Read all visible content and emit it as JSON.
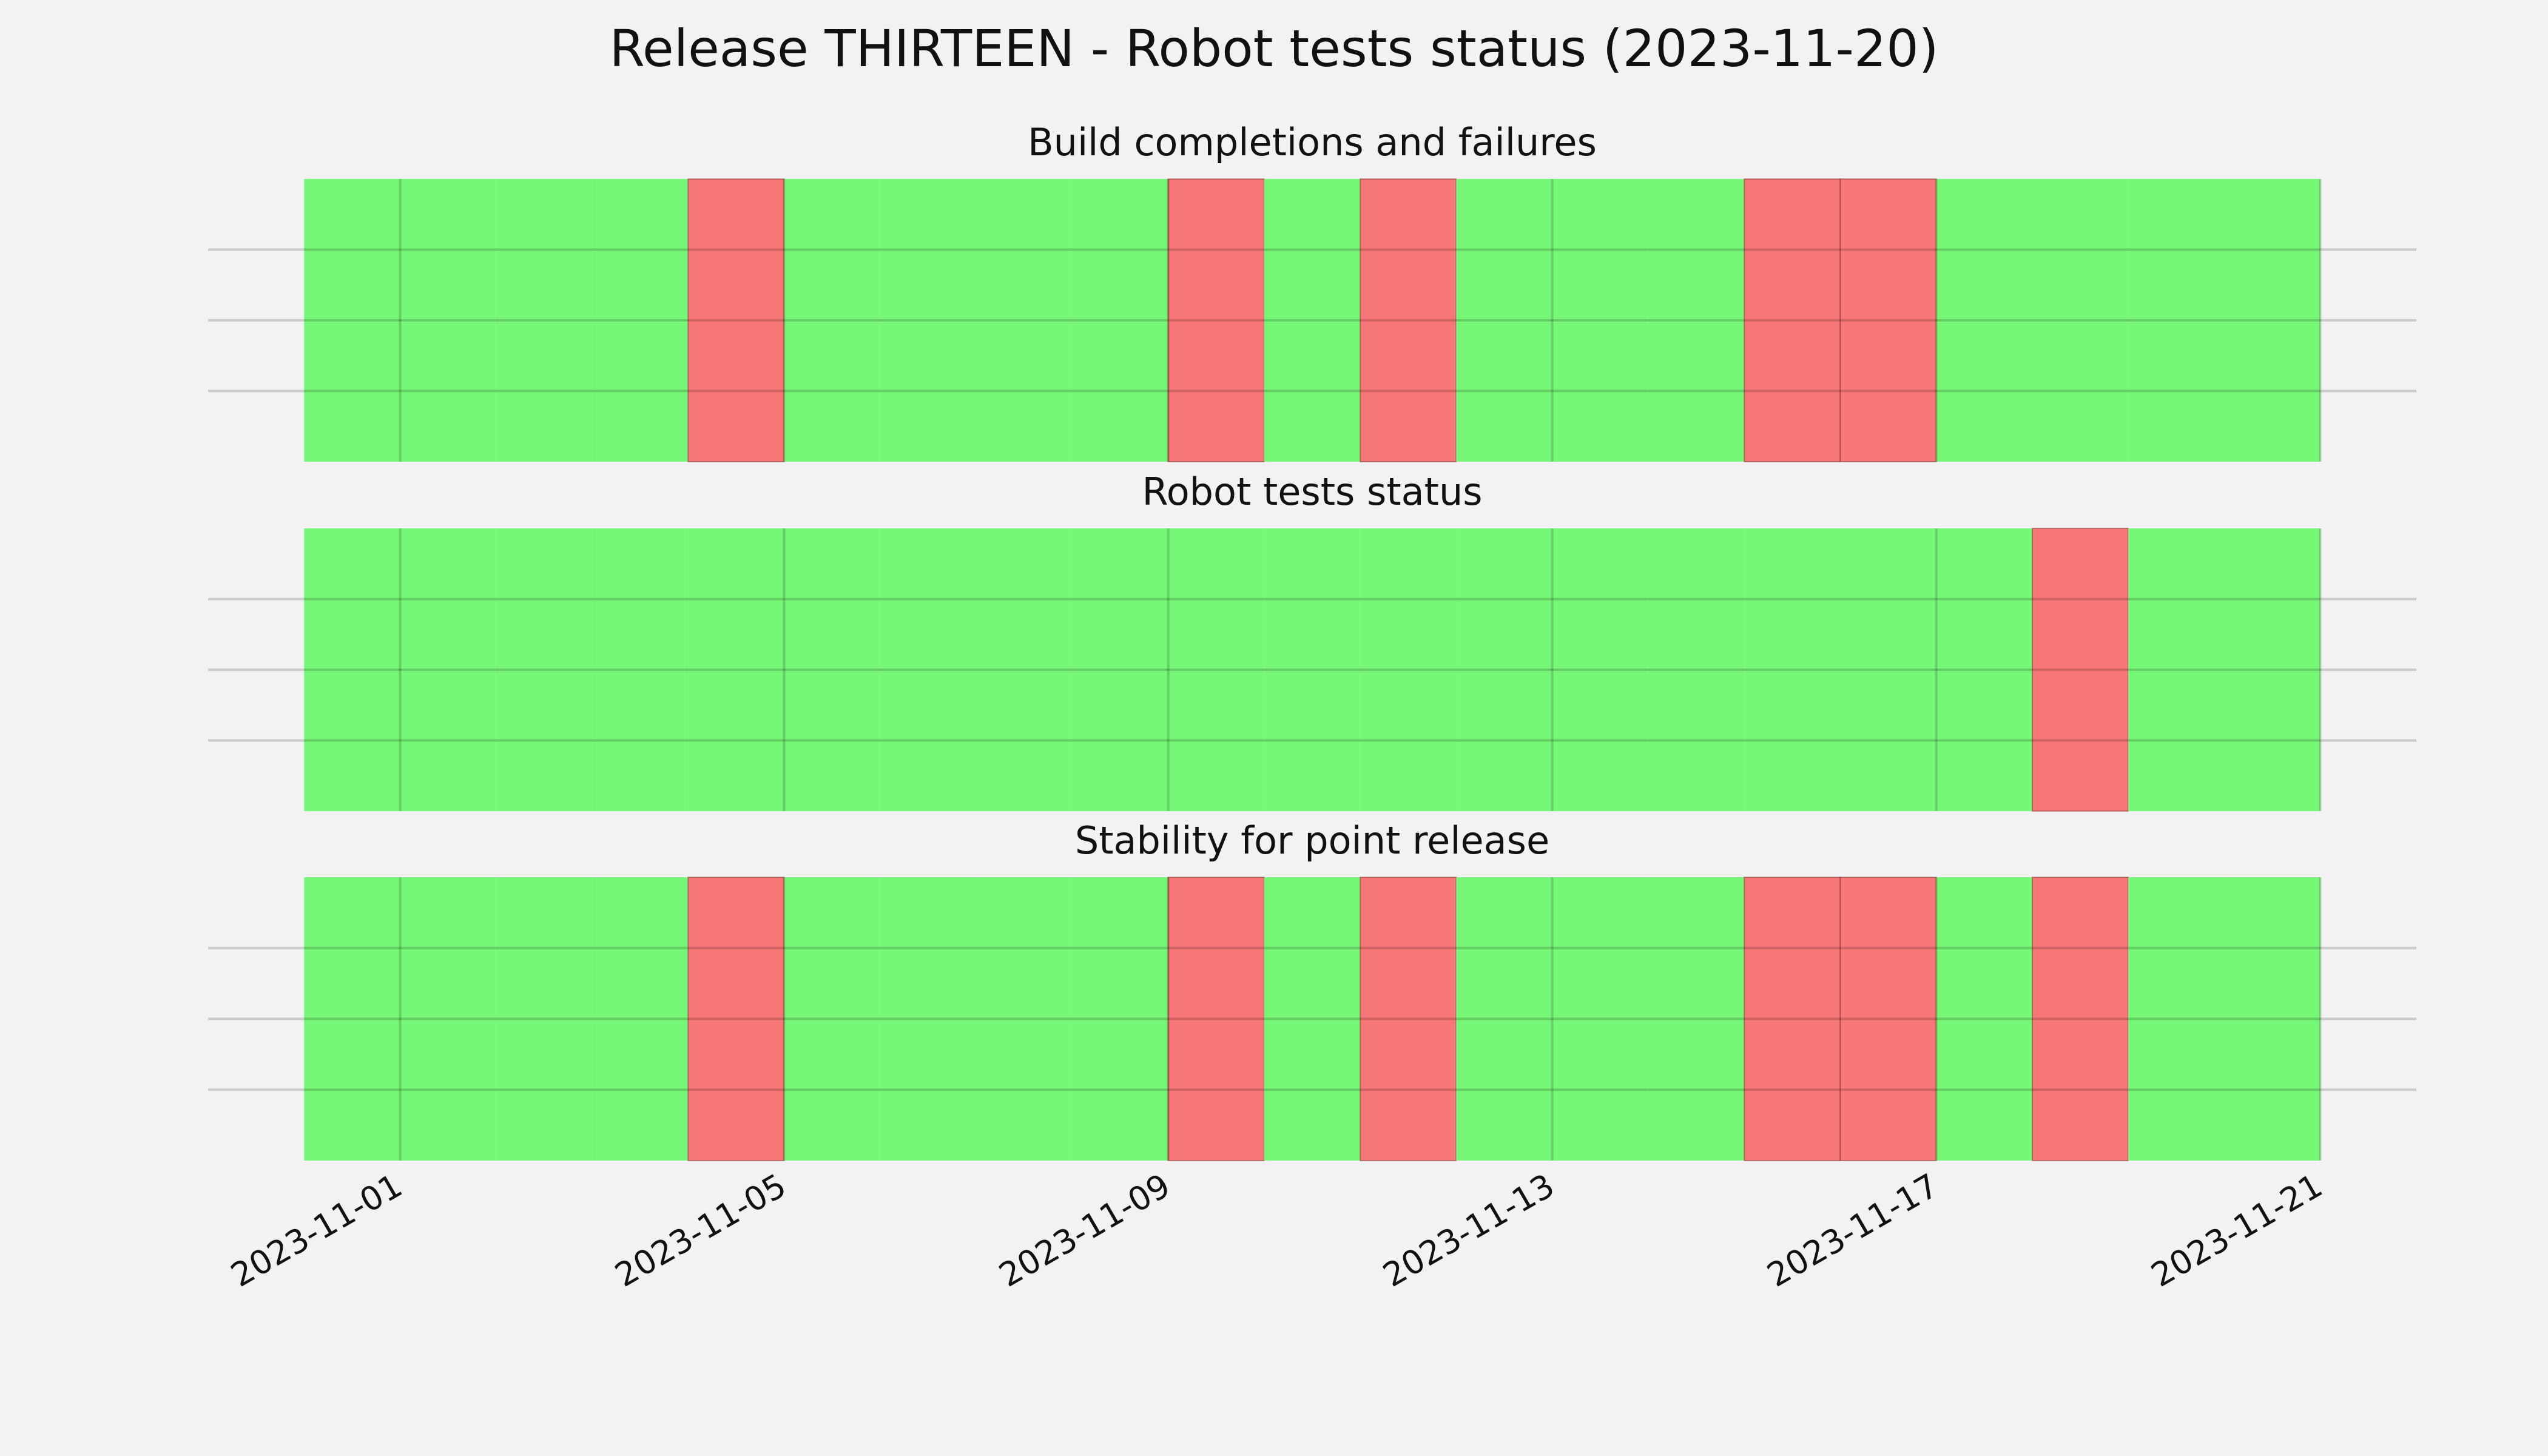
{
  "title": "Release THIRTEEN - Robot tests status (2023-11-20)",
  "chart_data": [
    {
      "type": "timeline",
      "title": "Build completions and failures",
      "x": [
        "2023-10-31",
        "2023-11-01",
        "2023-11-02",
        "2023-11-03",
        "2023-11-04",
        "2023-11-05",
        "2023-11-06",
        "2023-11-07",
        "2023-11-08",
        "2023-11-09",
        "2023-11-10",
        "2023-11-11",
        "2023-11-12",
        "2023-11-13",
        "2023-11-14",
        "2023-11-15",
        "2023-11-16",
        "2023-11-17",
        "2023-11-18",
        "2023-11-19",
        "2023-11-20"
      ],
      "values": [
        1,
        1,
        1,
        1,
        0,
        1,
        1,
        1,
        1,
        0,
        1,
        0,
        1,
        1,
        1,
        0,
        0,
        1,
        1,
        1,
        1
      ],
      "colors": [
        "#f77676",
        "#77f777"
      ],
      "xlim": [
        "2023-10-30",
        "2023-11-22"
      ],
      "xticks": [
        "2023-11-01",
        "2023-11-05",
        "2023-11-09",
        "2023-11-13",
        "2023-11-17",
        "2023-11-21"
      ],
      "ylim": [
        0,
        1
      ],
      "yticks": [
        0.25,
        0.5,
        0.75
      ],
      "grid": true
    },
    {
      "type": "timeline",
      "title": "Robot tests status",
      "x": [
        "2023-10-31",
        "2023-11-01",
        "2023-11-02",
        "2023-11-03",
        "2023-11-04",
        "2023-11-05",
        "2023-11-06",
        "2023-11-07",
        "2023-11-08",
        "2023-11-09",
        "2023-11-10",
        "2023-11-11",
        "2023-11-12",
        "2023-11-13",
        "2023-11-14",
        "2023-11-15",
        "2023-11-16",
        "2023-11-17",
        "2023-11-18",
        "2023-11-19",
        "2023-11-20"
      ],
      "values": [
        1,
        1,
        1,
        1,
        1,
        1,
        1,
        1,
        1,
        1,
        1,
        1,
        1,
        1,
        1,
        1,
        1,
        1,
        0,
        1,
        1
      ],
      "colors": [
        "#f77676",
        "#77f777"
      ],
      "xlim": [
        "2023-10-30",
        "2023-11-22"
      ],
      "xticks": [
        "2023-11-01",
        "2023-11-05",
        "2023-11-09",
        "2023-11-13",
        "2023-11-17",
        "2023-11-21"
      ],
      "ylim": [
        0,
        1
      ],
      "yticks": [
        0.25,
        0.5,
        0.75
      ],
      "grid": true
    },
    {
      "type": "timeline",
      "title": "Stability for point release",
      "x": [
        "2023-10-31",
        "2023-11-01",
        "2023-11-02",
        "2023-11-03",
        "2023-11-04",
        "2023-11-05",
        "2023-11-06",
        "2023-11-07",
        "2023-11-08",
        "2023-11-09",
        "2023-11-10",
        "2023-11-11",
        "2023-11-12",
        "2023-11-13",
        "2023-11-14",
        "2023-11-15",
        "2023-11-16",
        "2023-11-17",
        "2023-11-18",
        "2023-11-19",
        "2023-11-20"
      ],
      "values": [
        1,
        1,
        1,
        1,
        0,
        1,
        1,
        1,
        1,
        0,
        1,
        0,
        1,
        1,
        1,
        0,
        0,
        1,
        0,
        1,
        1
      ],
      "colors": [
        "#f77676",
        "#77f777"
      ],
      "xlim": [
        "2023-10-30",
        "2023-11-22"
      ],
      "xticks": [
        "2023-11-01",
        "2023-11-05",
        "2023-11-09",
        "2023-11-13",
        "2023-11-17",
        "2023-11-21"
      ],
      "ylim": [
        0,
        1
      ],
      "yticks": [
        0.25,
        0.5,
        0.75
      ],
      "grid": true
    }
  ]
}
